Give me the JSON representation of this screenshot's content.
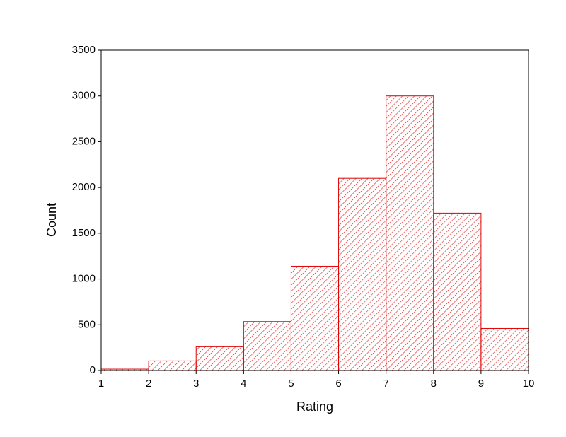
{
  "chart_data": {
    "type": "histogram",
    "x_label": "Rating",
    "y_label": "Count",
    "bins": [
      1,
      2,
      3,
      4,
      5,
      6,
      7,
      8,
      9,
      10
    ],
    "values": [
      15,
      105,
      260,
      535,
      1140,
      2100,
      3000,
      1720,
      460
    ],
    "color": "#e00000",
    "xlim": [
      1,
      10
    ],
    "xticks": [
      1,
      2,
      3,
      4,
      5,
      6,
      7,
      8,
      9,
      10
    ],
    "ylim": [
      0,
      3500
    ],
    "yticks": [
      0,
      500,
      1000,
      1500,
      2000,
      2500,
      3000,
      3500
    ]
  }
}
